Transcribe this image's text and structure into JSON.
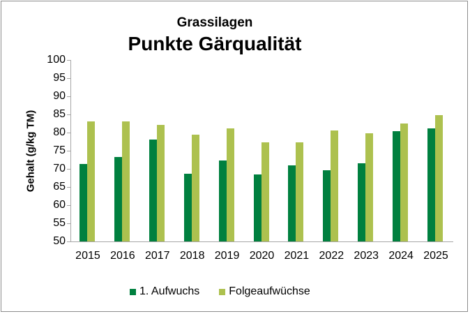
{
  "chart_data": {
    "type": "bar",
    "title": "Grassilagen",
    "subtitle": "Punkte Gärqualität",
    "xlabel": "",
    "ylabel": "Gehalt (g/kg TM)",
    "ylim": [
      50,
      100
    ],
    "yticks": [
      100,
      95,
      90,
      85,
      80,
      75,
      70,
      65,
      60,
      55,
      50
    ],
    "grid": false,
    "legend_position": "bottom",
    "categories": [
      "2015",
      "2016",
      "2017",
      "2018",
      "2019",
      "2020",
      "2021",
      "2022",
      "2023",
      "2024",
      "2025"
    ],
    "series": [
      {
        "name": "1. Aufwuchs",
        "color": "#00803f",
        "values": [
          71.4,
          73.3,
          78.0,
          68.7,
          72.4,
          68.5,
          71.0,
          69.6,
          71.6,
          80.3,
          81.1
        ]
      },
      {
        "name": "Folgeaufwüchse",
        "color": "#adc14f",
        "values": [
          83.1,
          83.1,
          82.2,
          79.4,
          81.1,
          77.3,
          77.3,
          80.5,
          79.9,
          82.5,
          84.8
        ]
      }
    ]
  }
}
